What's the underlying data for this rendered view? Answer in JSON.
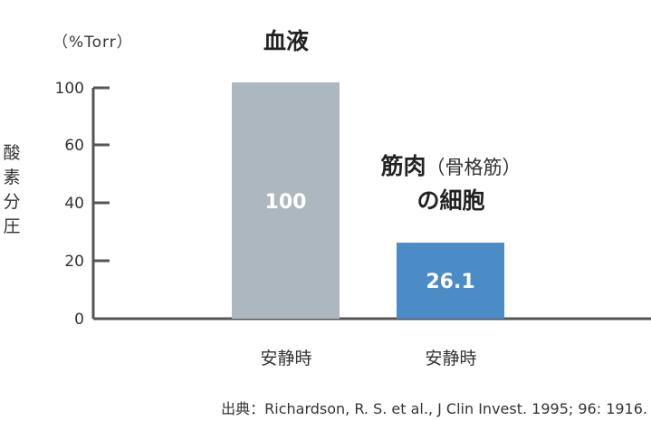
{
  "chart_data": {
    "type": "bar",
    "unit_label": "（%Torr）",
    "ylabel": "酸素分圧",
    "ytick_labels": [
      "0",
      "20",
      "40",
      "60",
      "100"
    ],
    "categories": [
      "安静時",
      "安静時"
    ],
    "values": [
      100,
      26.1
    ],
    "value_labels": [
      "100",
      "26.1"
    ],
    "bar_titles": [
      {
        "main": "血液",
        "sub": ""
      },
      {
        "main": "筋肉",
        "sub": "（骨格筋）",
        "line2": "の細胞"
      }
    ],
    "colors": [
      "#adb7bf",
      "#4b8bc6"
    ],
    "axis_color": "#555555",
    "grid": false
  },
  "source": "出典：Richardson, R. S. et al., J Clin Invest. 1995; 96: 1916."
}
